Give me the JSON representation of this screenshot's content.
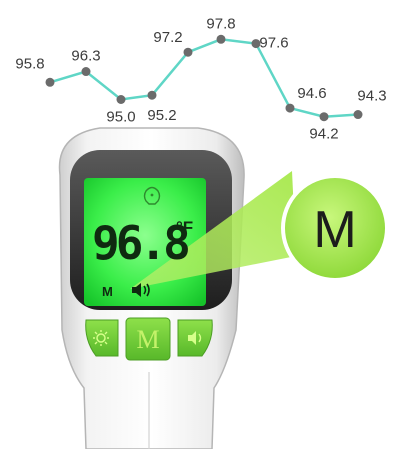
{
  "chart_data": {
    "type": "line",
    "values": [
      95.8,
      96.3,
      95.0,
      95.2,
      97.2,
      97.8,
      97.6,
      94.6,
      94.2,
      94.3
    ],
    "labels": [
      "95.8",
      "96.3",
      "95.0",
      "95.2",
      "97.2",
      "97.8",
      "97.6",
      "94.6",
      "94.2",
      "94.3"
    ],
    "ylim": [
      94.0,
      98.0
    ],
    "line_color": "#5fd6c6",
    "marker_color": "#6b6b6b"
  },
  "display": {
    "reading": "96.8",
    "unit": "°F",
    "mode": "M",
    "sound_icon": "speaker-icon",
    "sensor_icon": "face-icon",
    "backlight_color": "#3aee49"
  },
  "callout": {
    "letter": "M",
    "color": "#a6e84a"
  },
  "buttons": {
    "left_icon": "brightness-icon",
    "middle_label": "M",
    "right_icon": "speaker-icon"
  }
}
